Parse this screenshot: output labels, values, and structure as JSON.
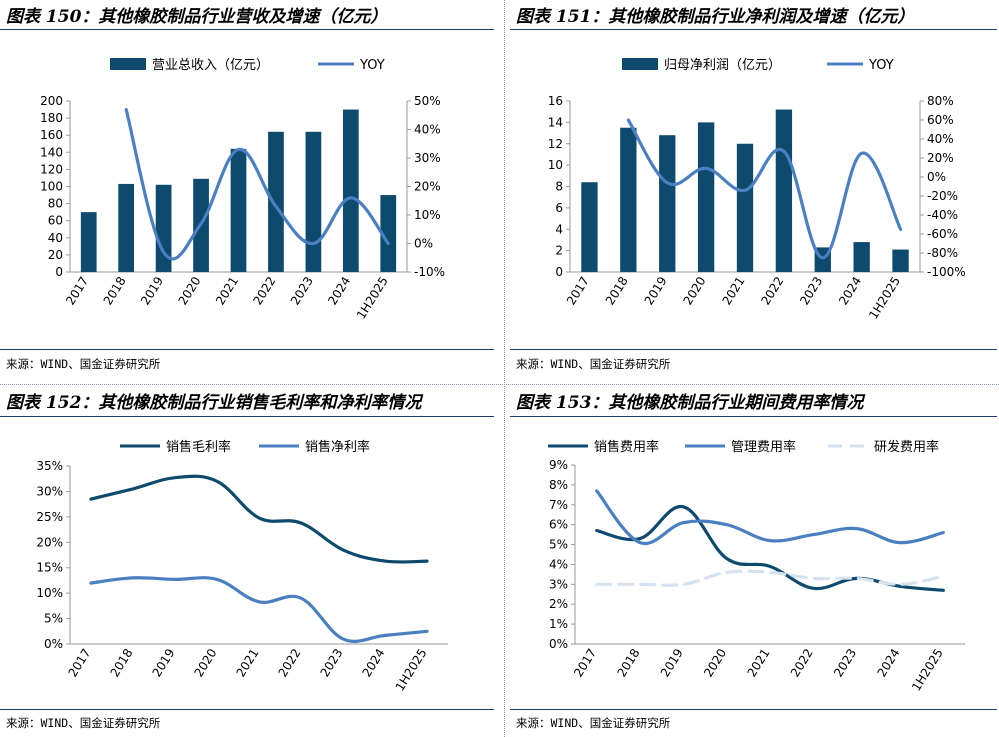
{
  "colors": {
    "dark": "#0d4a6e",
    "mid": "#4a7fc1",
    "light": "#d5e2f0",
    "axis": "#999999"
  },
  "source_text": "来源：WIND、国金证券研究所",
  "panels": [
    {
      "title": "图表 150：其他橡胶制品行业营收及增速（亿元）"
    },
    {
      "title": "图表 151：其他橡胶制品行业净利润及增速（亿元）"
    },
    {
      "title": "图表 152：其他橡胶制品行业销售毛利率和净利率情况"
    },
    {
      "title": "图表 153：其他橡胶制品行业期间费用率情况"
    }
  ],
  "chart_data": [
    {
      "type": "bar+line",
      "title": "图表 150：其他橡胶制品行业营收及增速（亿元）",
      "categories": [
        "2017",
        "2018",
        "2019",
        "2020",
        "2021",
        "2022",
        "2023",
        "2024",
        "1H2025"
      ],
      "series": [
        {
          "name": "营业总收入（亿元）",
          "type": "bar",
          "axis": "left",
          "values": [
            70,
            103,
            102,
            109,
            144,
            164,
            164,
            190,
            90
          ]
        },
        {
          "name": "YOY",
          "type": "line",
          "axis": "right",
          "unit": "%",
          "values": [
            null,
            47,
            -3,
            7,
            33,
            13,
            0,
            16,
            0
          ]
        }
      ],
      "left_ticks": [
        "0",
        "20",
        "40",
        "60",
        "80",
        "100",
        "120",
        "140",
        "160",
        "180",
        "200"
      ],
      "right_ticks": [
        "-10%",
        "0%",
        "10%",
        "20%",
        "30%",
        "40%",
        "50%"
      ],
      "ylim_left": [
        0,
        200
      ],
      "ylim_right": [
        -10,
        50
      ]
    },
    {
      "type": "bar+line",
      "title": "图表 151：其他橡胶制品行业净利润及增速（亿元）",
      "categories": [
        "2017",
        "2018",
        "2019",
        "2020",
        "2021",
        "2022",
        "2023",
        "2024",
        "1H2025"
      ],
      "series": [
        {
          "name": "归母净利润（亿元）",
          "type": "bar",
          "axis": "left",
          "values": [
            8.4,
            13.5,
            12.8,
            14.0,
            12.0,
            15.2,
            2.3,
            2.8,
            2.1
          ]
        },
        {
          "name": "YOY",
          "type": "line",
          "axis": "right",
          "unit": "%",
          "values": [
            null,
            60,
            -6,
            9,
            -14,
            27,
            -85,
            25,
            -55
          ]
        }
      ],
      "left_ticks": [
        "0",
        "2",
        "4",
        "6",
        "8",
        "10",
        "12",
        "14",
        "16"
      ],
      "right_ticks": [
        "-100%",
        "-80%",
        "-60%",
        "-40%",
        "-20%",
        "0%",
        "20%",
        "40%",
        "60%",
        "80%"
      ],
      "ylim_left": [
        0,
        16
      ],
      "ylim_right": [
        -100,
        80
      ]
    },
    {
      "type": "line",
      "title": "图表 152：其他橡胶制品行业销售毛利率和净利率情况",
      "categories": [
        "2017",
        "2018",
        "2019",
        "2020",
        "2021",
        "2022",
        "2023",
        "2024",
        "1H2025"
      ],
      "series": [
        {
          "name": "销售毛利率",
          "values": [
            28.5,
            30.5,
            32.7,
            32.0,
            24.8,
            23.8,
            18.5,
            16.3,
            16.3
          ]
        },
        {
          "name": "销售净利率",
          "values": [
            12.0,
            13.0,
            12.7,
            12.7,
            8.3,
            9.0,
            1.0,
            1.7,
            2.5
          ]
        }
      ],
      "y_ticks": [
        "0%",
        "5%",
        "10%",
        "15%",
        "20%",
        "25%",
        "30%",
        "35%"
      ],
      "ylim": [
        0,
        35
      ]
    },
    {
      "type": "line",
      "title": "图表 153：其他橡胶制品行业期间费用率情况",
      "categories": [
        "2017",
        "2018",
        "2019",
        "2020",
        "2021",
        "2022",
        "2023",
        "2024",
        "1H2025"
      ],
      "series": [
        {
          "name": "销售费用率",
          "values": [
            5.7,
            5.3,
            6.9,
            4.3,
            3.9,
            2.8,
            3.3,
            2.9,
            2.7
          ]
        },
        {
          "name": "管理费用率",
          "values": [
            7.7,
            5.1,
            6.1,
            6.0,
            5.2,
            5.5,
            5.8,
            5.1,
            5.6
          ]
        },
        {
          "name": "研发费用率",
          "values": [
            3.0,
            3.0,
            3.0,
            3.6,
            3.6,
            3.3,
            3.3,
            3.0,
            3.4
          ]
        }
      ],
      "y_ticks": [
        "0%",
        "1%",
        "2%",
        "3%",
        "4%",
        "5%",
        "6%",
        "7%",
        "8%",
        "9%"
      ],
      "ylim": [
        0,
        9
      ]
    }
  ]
}
